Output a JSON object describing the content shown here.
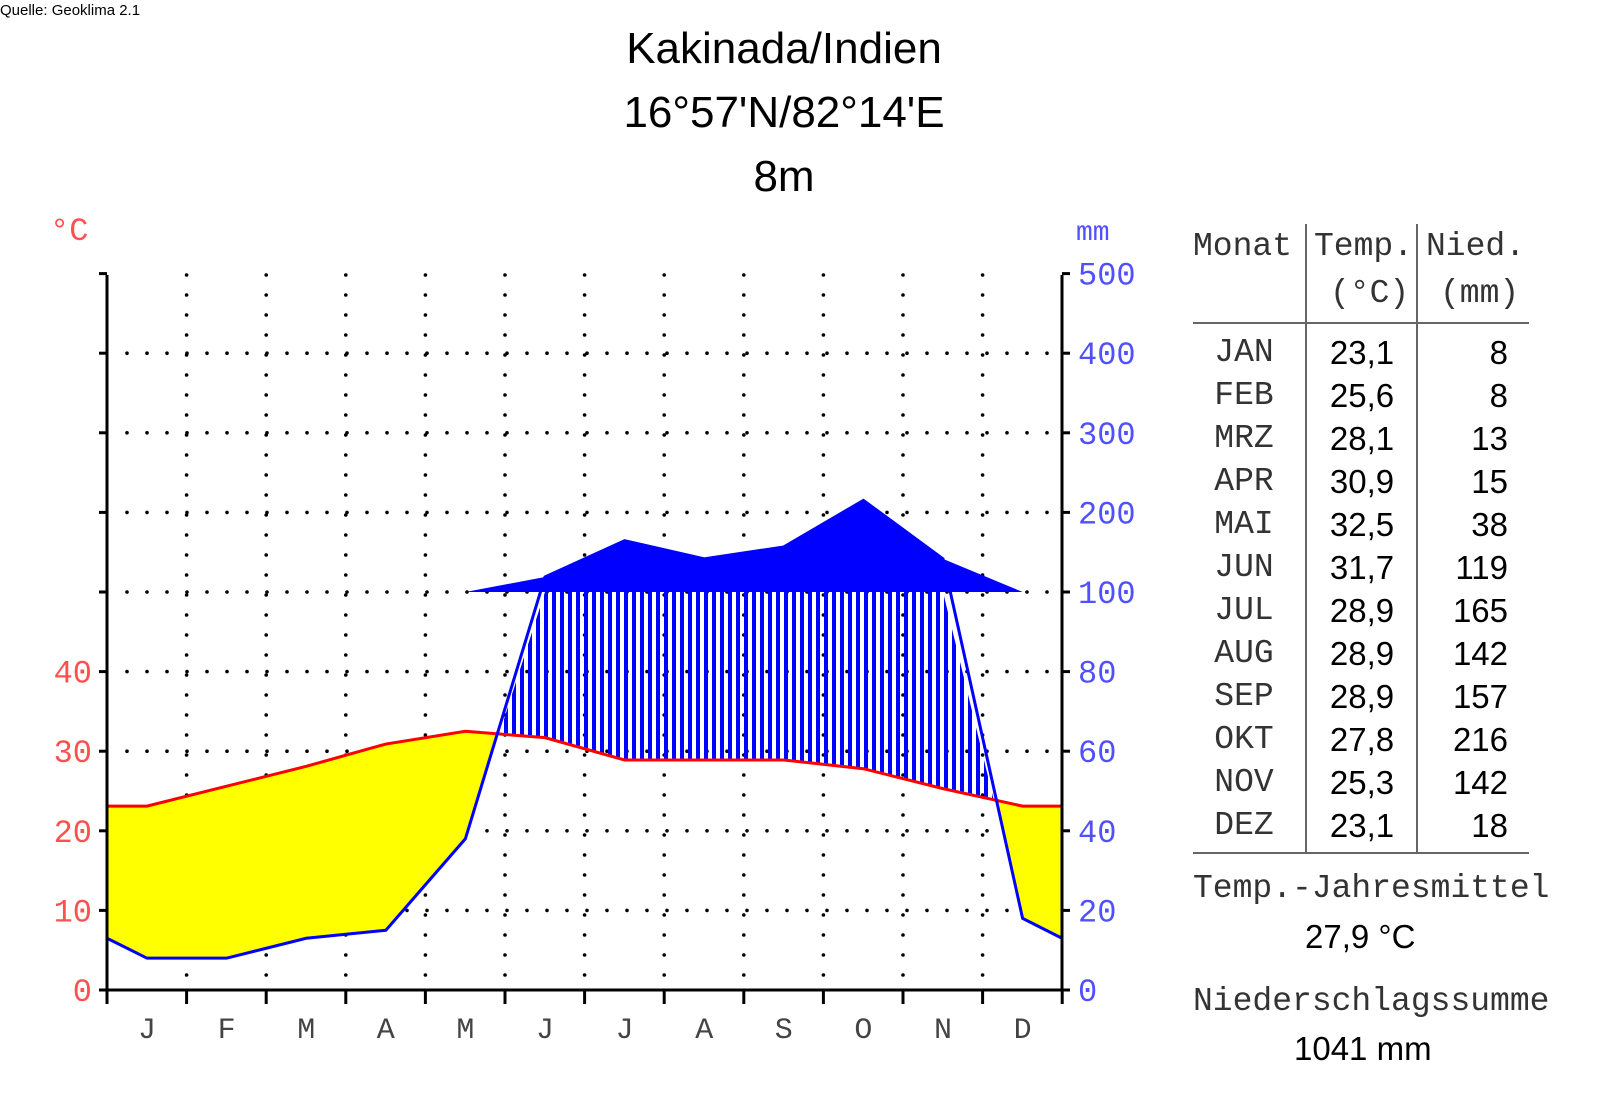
{
  "source": "Quelle: Geoklima 2.1",
  "title": {
    "station": "Kakinada/Indien",
    "coords": "16°57'N/82°14'E",
    "elevation": "8m"
  },
  "chart_data": {
    "type": "climate-diagram",
    "title": "Kakinada/Indien",
    "months": [
      "J",
      "F",
      "M",
      "A",
      "M",
      "J",
      "J",
      "A",
      "S",
      "O",
      "N",
      "D"
    ],
    "temp_unit": "°C",
    "precip_unit": "mm",
    "temp_ticks": [
      "0",
      "10",
      "20",
      "30",
      "40"
    ],
    "precip_ticks": [
      "0",
      "20",
      "40",
      "60",
      "80",
      "100",
      "200",
      "300",
      "400",
      "500"
    ],
    "temp_range": [
      0,
      40
    ],
    "precip_range": [
      0,
      500
    ],
    "precip_scale_break": 100,
    "grid": true,
    "temperature": [
      23.1,
      25.6,
      28.1,
      30.9,
      32.5,
      31.7,
      28.9,
      28.9,
      28.9,
      27.8,
      25.3,
      23.1
    ],
    "precipitation": [
      8,
      8,
      13,
      15,
      38,
      119,
      165,
      142,
      157,
      216,
      142,
      18
    ],
    "colors": {
      "temp": "#ff0000",
      "precip": "#0000ff",
      "arid": "#ffff00",
      "temp_label": "#ff5050",
      "precip_label": "#5050ff"
    }
  },
  "table": {
    "headers": [
      "Monat",
      "Temp.",
      "Nied."
    ],
    "subheaders": [
      "",
      "(°C)",
      "(mm)"
    ],
    "rows": [
      [
        "JAN",
        "23,1",
        "8"
      ],
      [
        "FEB",
        "25,6",
        "8"
      ],
      [
        "MRZ",
        "28,1",
        "13"
      ],
      [
        "APR",
        "30,9",
        "15"
      ],
      [
        "MAI",
        "32,5",
        "38"
      ],
      [
        "JUN",
        "31,7",
        "119"
      ],
      [
        "JUL",
        "28,9",
        "165"
      ],
      [
        "AUG",
        "28,9",
        "142"
      ],
      [
        "SEP",
        "28,9",
        "157"
      ],
      [
        "OKT",
        "27,8",
        "216"
      ],
      [
        "NOV",
        "25,3",
        "142"
      ],
      [
        "DEZ",
        "23,1",
        "18"
      ]
    ],
    "annual_temp_label": "Temp.-Jahresmittel",
    "annual_temp": "27,9 °C",
    "annual_precip_label": "Niederschlagssumme",
    "annual_precip": "1041 mm"
  }
}
